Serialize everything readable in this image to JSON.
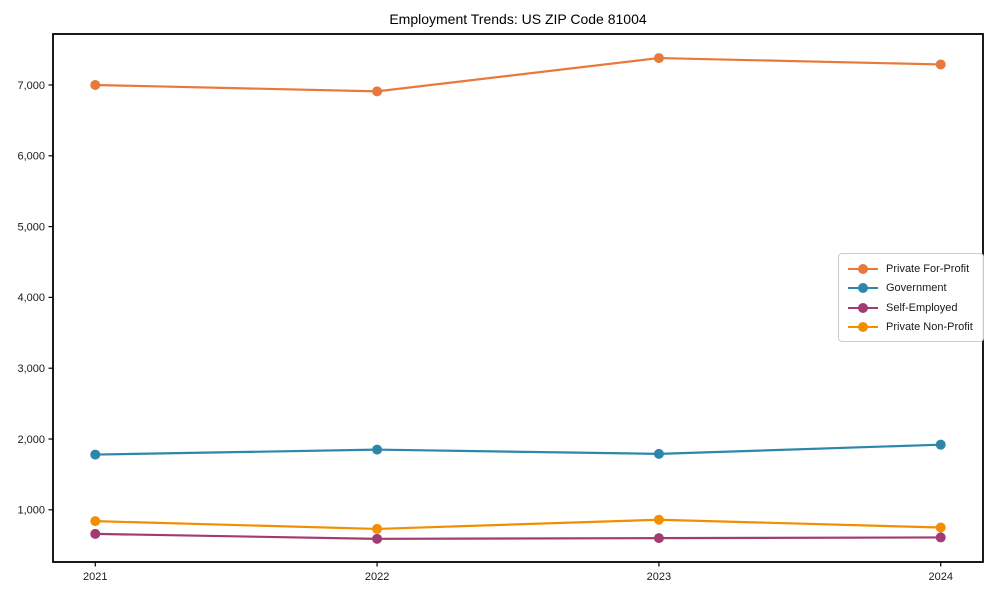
{
  "chart_data": {
    "type": "line",
    "title": "Employment Trends: US ZIP Code 81004",
    "x": [
      2021,
      2022,
      2023,
      2024
    ],
    "x_tick_labels": [
      "2021",
      "2022",
      "2023",
      "2024"
    ],
    "series": [
      {
        "name": "Private For-Profit",
        "color": "#E8793D",
        "values": [
          7000,
          6910,
          7380,
          7290
        ]
      },
      {
        "name": "Government",
        "color": "#2E86AB",
        "values": [
          1780,
          1850,
          1790,
          1920
        ]
      },
      {
        "name": "Self-Employed",
        "color": "#A23B72",
        "values": [
          660,
          590,
          600,
          610
        ]
      },
      {
        "name": "Private Non-Profit",
        "color": "#F18F01",
        "values": [
          840,
          730,
          860,
          750
        ]
      }
    ],
    "yticks": [
      1000,
      2000,
      3000,
      4000,
      5000,
      6000,
      7000
    ],
    "ytick_labels": [
      "1,000",
      "2,000",
      "3,000",
      "4,000",
      "5,000",
      "6,000",
      "7,000"
    ],
    "xlim": [
      2020.85,
      2024.15
    ],
    "ylim": [
      263,
      7720
    ],
    "grid": false,
    "legend_position": "center-right",
    "axis_color": "#000000",
    "marker": "circle",
    "line_width": 2.2,
    "marker_radius": 5
  }
}
